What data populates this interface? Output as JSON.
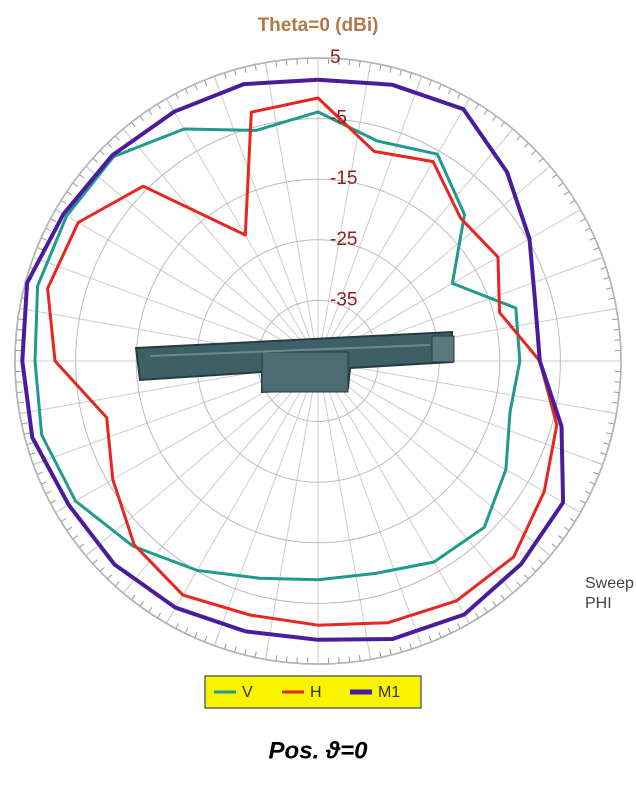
{
  "chart_data": {
    "type": "polar",
    "title": "Theta=0 (dBi)",
    "annotation": [
      "Sweep",
      "PHI"
    ],
    "theta": [
      0,
      15,
      30,
      45,
      60,
      75,
      90,
      105,
      120,
      135,
      150,
      165,
      180,
      195,
      210,
      225,
      240,
      255,
      270,
      285,
      300,
      315,
      330,
      345
    ],
    "rlim": [
      -45,
      5
    ],
    "rticks": [
      5,
      -5,
      -15,
      -25,
      -35
    ],
    "grid": true,
    "series": [
      {
        "name": "V",
        "color": "#1f9a8c",
        "values": [
          -3.9,
          -7.4,
          -5.6,
          -10.8,
          -19.4,
          -11.2,
          -11.7,
          -12.2,
          -9.2,
          -6.2,
          -6.7,
          -8.7,
          -8.9,
          -7.9,
          -5.1,
          -1.8,
          1.2,
          2.2,
          1.7,
          2.9,
          2.9,
          2.7,
          -0.8,
          -5.6
        ]
      },
      {
        "name": "H",
        "color": "#e8251f",
        "values": [
          -1.6,
          -9.2,
          -7,
          -11.7,
          -10.7,
          -14,
          -8.4,
          -4.2,
          -1.9,
          0.7,
          0.7,
          -0.3,
          -1.4,
          -1.6,
          -0.4,
          -2.1,
          -5.9,
          -8.9,
          -1.6,
          1.2,
          0.7,
          -4.2,
          -21,
          -2.5
        ]
      },
      {
        "name": "M1",
        "color": "#4a1c9c",
        "values": [
          1.4,
          2.2,
          3.0,
          -0.9,
          -4.7,
          -7.9,
          -8.4,
          -3.4,
          1.7,
          2.4,
          3.3,
          2.5,
          1.0,
          1.2,
          2.0,
          2.5,
          2.5,
          3.8,
          3.8,
          4.7,
          3.5,
          3.0,
          2.5,
          2.3
        ]
      }
    ]
  },
  "caption": "Pos. ϑ=0"
}
